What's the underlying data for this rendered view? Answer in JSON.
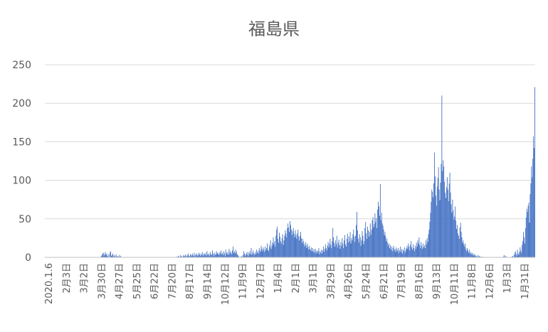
{
  "chart_data": {
    "type": "bar",
    "title": "福島県",
    "xlabel": "",
    "ylabel": "",
    "ylim": [
      0,
      250
    ],
    "yticks": [
      0,
      50,
      100,
      150,
      200,
      250
    ],
    "grid": true,
    "legend": "none",
    "bar_color": "#4472c4",
    "x_start": "2020-01-06",
    "x_end": "2022-01-31",
    "x_tick_labels": [
      "2020.1.6",
      "2月3日",
      "3月2日",
      "3月30日",
      "4月27日",
      "5月25日",
      "6月22日",
      "7月20日",
      "8月17日",
      "9月14日",
      "10月12日",
      "11月9日",
      "12月7日",
      "1月4日",
      "2月1日",
      "3月1日",
      "3月29日",
      "4月26日",
      "5月24日",
      "6月21日",
      "7月19日",
      "8月16日",
      "9月13日",
      "10月11日",
      "11月8日",
      "12月6日",
      "1月3日",
      "1月31日"
    ],
    "series": [
      {
        "values": [
          0,
          0,
          0,
          0,
          0,
          0,
          0,
          0,
          0,
          0,
          0,
          0,
          0,
          0,
          0,
          0,
          0,
          0,
          0,
          0,
          0,
          0,
          0,
          0,
          0,
          0,
          0,
          0,
          0,
          0,
          0,
          0,
          0,
          0,
          0,
          0,
          0,
          0,
          0,
          0,
          0,
          0,
          0,
          0,
          0,
          0,
          0,
          0,
          0,
          0,
          0,
          0,
          0,
          0,
          0,
          0,
          0,
          0,
          0,
          0,
          0,
          0,
          0,
          0,
          0,
          0,
          0,
          0,
          0,
          0,
          0,
          0,
          0,
          0,
          0,
          0,
          0,
          0,
          0,
          0,
          0,
          0,
          0,
          0,
          2,
          3,
          5,
          6,
          2,
          4,
          7,
          3,
          5,
          2,
          1,
          4,
          0,
          6,
          8,
          2,
          3,
          5,
          1,
          3,
          2,
          0,
          4,
          1,
          2,
          0,
          1,
          3,
          0,
          2,
          0,
          0,
          0,
          0,
          0,
          0,
          0,
          0,
          0,
          0,
          0,
          0,
          0,
          0,
          0,
          0,
          0,
          0,
          0,
          0,
          0,
          0,
          0,
          0,
          0,
          0,
          0,
          0,
          0,
          0,
          0,
          0,
          0,
          0,
          0,
          0,
          0,
          0,
          0,
          0,
          0,
          0,
          0,
          0,
          0,
          0,
          0,
          0,
          0,
          0,
          0,
          0,
          0,
          0,
          0,
          0,
          0,
          0,
          0,
          0,
          0,
          0,
          0,
          0,
          0,
          0,
          0,
          0,
          0,
          0,
          0,
          0,
          0,
          0,
          0,
          0,
          0,
          0,
          0,
          0,
          0,
          0,
          0,
          1,
          0,
          2,
          1,
          0,
          3,
          1,
          2,
          0,
          1,
          3,
          2,
          1,
          4,
          2,
          1,
          3,
          5,
          2,
          1,
          4,
          3,
          2,
          5,
          3,
          2,
          6,
          1,
          4,
          3,
          5,
          2,
          3,
          6,
          4,
          2,
          5,
          3,
          7,
          2,
          4,
          5,
          3,
          6,
          2,
          8,
          4,
          3,
          5,
          2,
          7,
          4,
          3,
          9,
          5,
          2,
          6,
          4,
          3,
          8,
          5,
          6,
          4,
          3,
          7,
          5,
          9,
          4,
          6,
          3,
          8,
          5,
          2,
          10,
          6,
          4,
          7,
          3,
          11,
          5,
          8,
          6,
          4,
          9,
          14,
          6,
          8,
          5,
          10,
          7,
          4,
          3,
          2,
          0,
          0,
          0,
          1,
          2,
          0,
          3,
          8,
          5,
          2,
          4,
          6,
          3,
          7,
          2,
          5,
          8,
          4,
          12,
          3,
          6,
          9,
          5,
          3,
          7,
          4,
          10,
          6,
          8,
          5,
          12,
          9,
          7,
          15,
          11,
          8,
          13,
          10,
          7,
          14,
          9,
          12,
          18,
          10,
          8,
          16,
          13,
          22,
          11,
          15,
          19,
          26,
          17,
          21,
          14,
          28,
          36,
          40,
          24,
          19,
          32,
          27,
          21,
          18,
          25,
          30,
          16,
          22,
          28,
          35,
          31,
          26,
          38,
          44,
          39,
          33,
          47,
          42,
          36,
          29,
          34,
          38,
          31,
          26,
          35,
          29,
          24,
          31,
          36,
          27,
          22,
          28,
          33,
          25,
          19,
          24,
          21,
          17,
          14,
          20,
          16,
          12,
          18,
          14,
          10,
          15,
          11,
          9,
          13,
          8,
          12,
          7,
          10,
          6,
          11,
          8,
          5,
          9,
          7,
          12,
          4,
          8,
          6,
          10,
          5,
          9,
          14,
          7,
          11,
          17,
          12,
          9,
          15,
          20,
          13,
          18,
          24,
          16,
          12,
          21,
          38,
          26,
          19,
          14,
          22,
          17,
          28,
          13,
          19,
          23,
          16,
          11,
          20,
          15,
          25,
          18,
          12,
          22,
          29,
          17,
          14,
          24,
          31,
          19,
          27,
          21,
          33,
          18,
          25,
          22,
          30,
          36,
          27,
          20,
          28,
          42,
          59,
          35,
          24,
          19,
          30,
          26,
          15,
          22,
          34,
          28,
          17,
          21,
          38,
          46,
          31,
          24,
          40,
          35,
          27,
          33,
          44,
          29,
          36,
          48,
          52,
          39,
          43,
          57,
          46,
          51,
          38,
          62,
          72,
          66,
          54,
          95,
          48,
          58,
          44,
          41,
          36,
          29,
          33,
          27,
          21,
          24,
          19,
          15,
          18,
          12,
          16,
          10,
          14,
          8,
          12,
          15,
          9,
          11,
          7,
          13,
          10,
          8,
          12,
          6,
          9,
          14,
          7,
          11,
          5,
          10,
          8,
          13,
          6,
          9,
          12,
          15,
          11,
          18,
          14,
          9,
          16,
          21,
          13,
          10,
          17,
          12,
          8,
          15,
          11,
          19,
          14,
          22,
          18,
          26,
          16,
          12,
          20,
          15,
          11,
          18,
          13,
          16,
          12,
          22,
          17,
          25,
          20,
          30,
          36,
          46,
          58,
          72,
          88,
          85,
          78,
          96,
          136,
          105,
          80,
          67,
          92,
          103,
          117,
          88,
          74,
          97,
          121,
          210,
          112,
          126,
          118,
          98,
          84,
          77,
          91,
          104,
          88,
          73,
          96,
          110,
          84,
          69,
          58,
          75,
          61,
          49,
          53,
          66,
          48,
          37,
          42,
          31,
          28,
          24,
          39,
          45,
          33,
          26,
          19,
          22,
          17,
          14,
          18,
          11,
          8,
          12,
          9,
          6,
          10,
          5,
          7,
          4,
          6,
          3,
          5,
          2,
          4,
          3,
          1,
          2,
          0,
          3,
          1,
          2,
          0,
          1,
          0,
          1,
          0,
          0,
          0,
          0,
          0,
          0,
          0,
          0,
          0,
          0,
          0,
          0,
          0,
          0,
          0,
          0,
          0,
          0,
          0,
          0,
          0,
          0,
          0,
          0,
          0,
          0,
          0,
          0,
          0,
          0,
          0,
          1,
          3,
          0,
          2,
          1,
          0,
          0,
          0,
          0,
          0,
          0,
          0,
          0,
          1,
          2,
          0,
          3,
          6,
          8,
          4,
          2,
          10,
          5,
          3,
          7,
          13,
          9,
          6,
          16,
          21,
          33,
          26,
          18,
          38,
          52,
          63,
          59,
          67,
          71,
          45,
          82,
          96,
          118,
          104,
          128,
          157,
          142,
          221
        ]
      }
    ]
  }
}
